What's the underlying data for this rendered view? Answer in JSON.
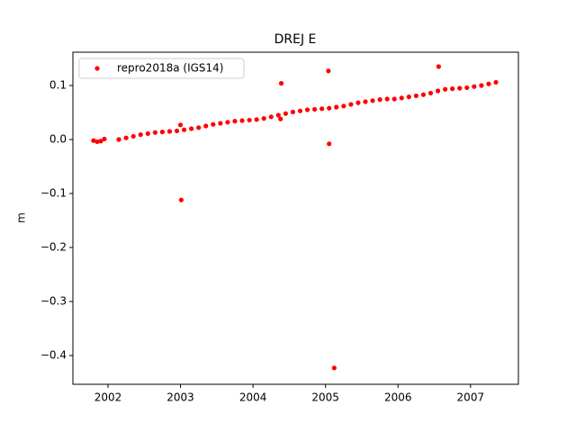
{
  "chart_data": {
    "type": "scatter",
    "title": "DREJ E",
    "y_label": "m",
    "legend_loc": "upper left",
    "series": [
      {
        "name": "repro2018a (IGS14)",
        "color": "#ff0000",
        "x": [
          2001.8,
          2001.85,
          2001.9,
          2001.95,
          2002.15,
          2002.25,
          2002.35,
          2002.45,
          2002.55,
          2002.65,
          2002.75,
          2002.85,
          2002.95,
          2003.05,
          2003.15,
          2003.25,
          2003.35,
          2003.45,
          2003.55,
          2003.65,
          2003.75,
          2003.85,
          2003.95,
          2004.05,
          2004.15,
          2004.25,
          2004.35,
          2004.45,
          2004.55,
          2004.65,
          2004.75,
          2004.85,
          2004.95,
          2005.05,
          2005.15,
          2005.25,
          2005.35,
          2005.45,
          2005.55,
          2005.65,
          2005.75,
          2005.85,
          2005.95,
          2006.05,
          2006.15,
          2006.25,
          2006.35,
          2006.45,
          2006.55,
          2006.65,
          2006.75,
          2006.85,
          2006.95,
          2007.05,
          2007.15,
          2007.25,
          2007.35,
          2003.01,
          2003.0,
          2004.39,
          2004.38,
          2005.04,
          2005.05,
          2005.12,
          2006.56
        ],
        "values": [
          -0.002,
          -0.004,
          -0.003,
          0.001,
          0.0,
          0.003,
          0.006,
          0.009,
          0.011,
          0.013,
          0.014,
          0.015,
          0.016,
          0.018,
          0.02,
          0.022,
          0.025,
          0.028,
          0.03,
          0.032,
          0.034,
          0.035,
          0.036,
          0.037,
          0.039,
          0.042,
          0.045,
          0.048,
          0.051,
          0.053,
          0.055,
          0.056,
          0.057,
          0.058,
          0.06,
          0.062,
          0.065,
          0.068,
          0.07,
          0.072,
          0.074,
          0.075,
          0.075,
          0.077,
          0.079,
          0.081,
          0.083,
          0.086,
          0.09,
          0.093,
          0.094,
          0.095,
          0.096,
          0.098,
          0.1,
          0.103,
          0.106,
          -0.112,
          0.027,
          0.104,
          0.038,
          0.127,
          -0.008,
          -0.423,
          0.135
        ]
      }
    ],
    "xlim": [
      2001.516,
      2007.66
    ],
    "xticks": [
      2002,
      2003,
      2004,
      2005,
      2006,
      2007
    ],
    "ylim": [
      -0.4533,
      0.1617
    ],
    "yticks": [
      {
        "value": -0.4,
        "label": "−0.4"
      },
      {
        "value": -0.3,
        "label": "−0.3"
      },
      {
        "value": -0.2,
        "label": "−0.2"
      },
      {
        "value": -0.1,
        "label": "−0.1"
      },
      {
        "value": 0,
        "label": "0.0"
      },
      0.1
    ]
  }
}
